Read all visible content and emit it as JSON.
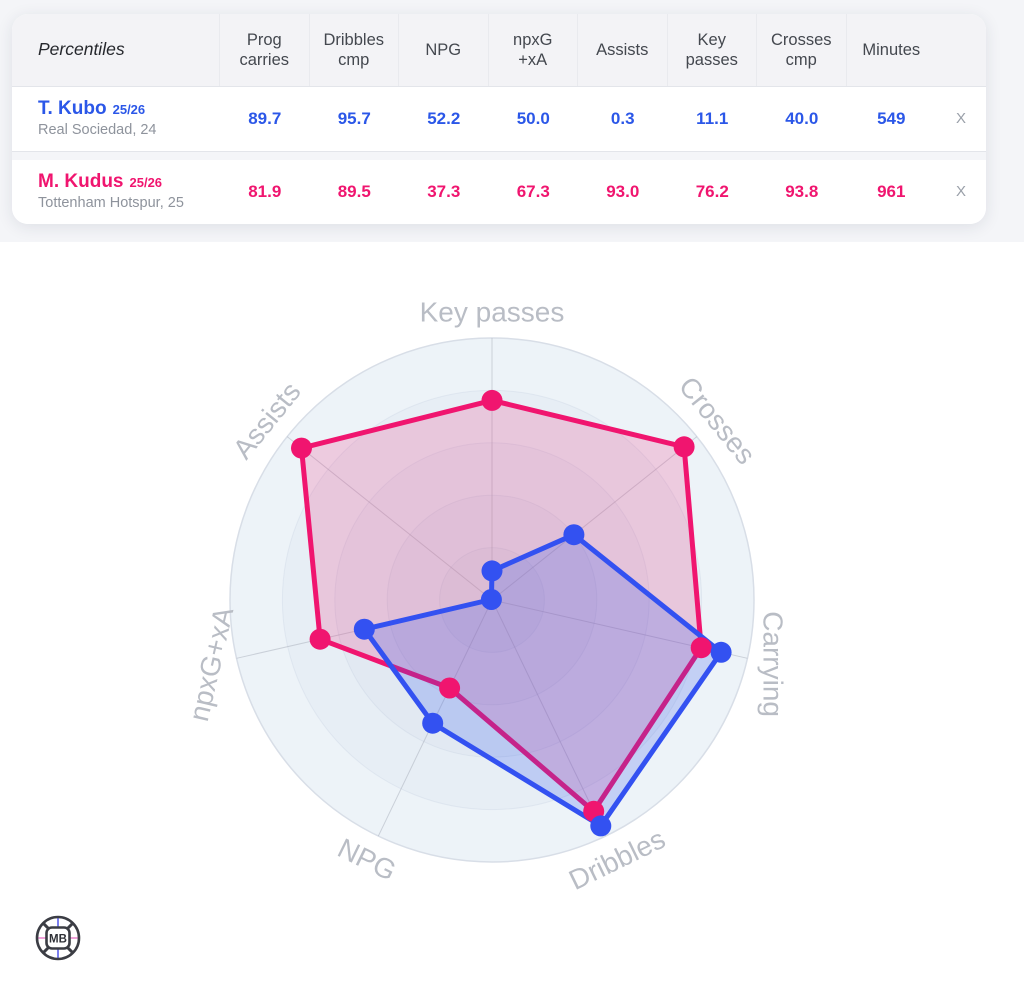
{
  "table": {
    "corner_label": "Percentiles",
    "columns": [
      "Prog\ncarries",
      "Dribbles\ncmp",
      "NPG",
      "npxG\n+xA",
      "Assists",
      "Key\npasses",
      "Crosses\ncmp",
      "Minutes"
    ],
    "remove_label": "x",
    "rows": [
      {
        "name": "T. Kubo",
        "season": "25/26",
        "subtitle": "Real Sociedad, 24",
        "color": "#2b57e8",
        "values": [
          "89.7",
          "95.7",
          "52.2",
          "50.0",
          "0.3",
          "11.1",
          "40.0",
          "549"
        ]
      },
      {
        "name": "M. Kudus",
        "season": "25/26",
        "subtitle": "Tottenham Hotspur, 25",
        "color": "#f0156f",
        "values": [
          "81.9",
          "89.5",
          "37.3",
          "67.3",
          "93.0",
          "76.2",
          "93.8",
          "961"
        ]
      }
    ]
  },
  "chart_data": {
    "type": "radar",
    "axes": [
      "Key passes",
      "Crosses",
      "Carrying",
      "Dribbles",
      "NPG",
      "npxG+xA",
      "Assists"
    ],
    "axis_range": [
      0,
      100
    ],
    "grid": "concentric-circles",
    "legend_position": "none",
    "series": [
      {
        "name": "M. Kudus",
        "color": "#f0156f",
        "fill": "rgba(240,21,111,0.18)",
        "values": [
          76.2,
          93.8,
          81.9,
          89.5,
          37.3,
          67.3,
          93.0
        ]
      },
      {
        "name": "T. Kubo",
        "color": "#3351f1",
        "fill": "rgba(47,85,238,0.22)",
        "values": [
          11.1,
          40.0,
          89.7,
          95.7,
          52.2,
          50.0,
          0.3
        ]
      }
    ],
    "colors": {
      "plot_bg": "#edf3f8",
      "outer_stroke": "#d8dee7",
      "spoke": "#a7adb9",
      "label": "#b9bdc5"
    }
  },
  "logo": {
    "text": "MB"
  }
}
